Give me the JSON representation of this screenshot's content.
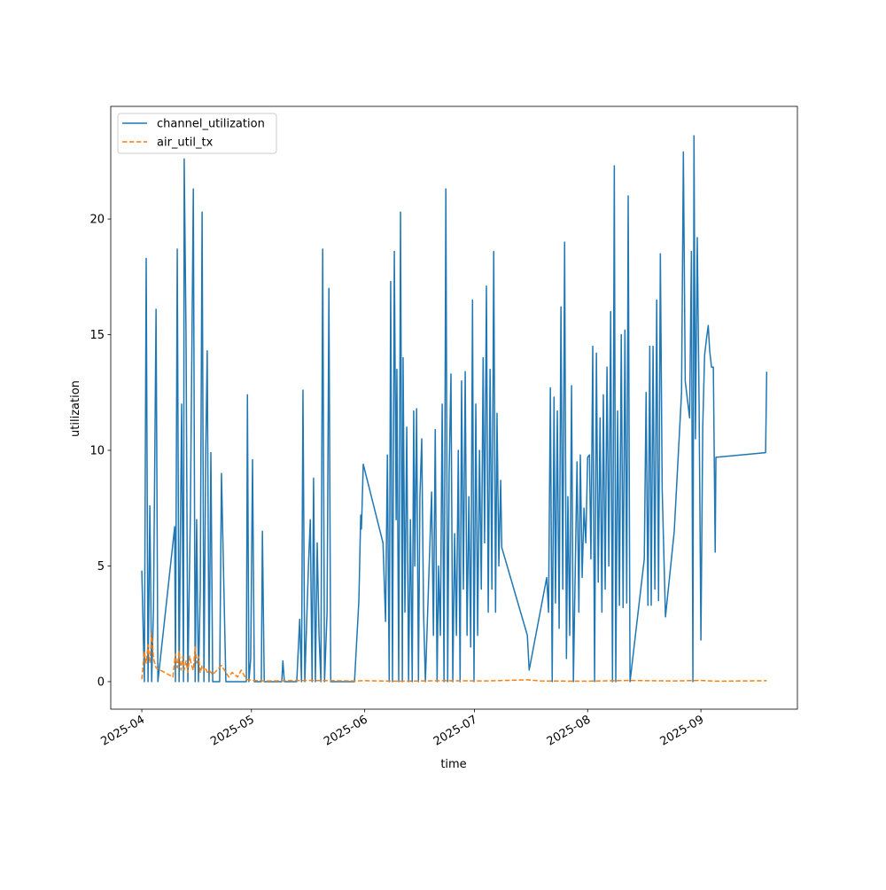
{
  "chart_data": {
    "type": "line",
    "x_label": "time",
    "y_label": "utilization",
    "xlim": [
      -8.5,
      179.4
    ],
    "xticks": [
      {
        "value": 0,
        "label": "2025-04"
      },
      {
        "value": 30,
        "label": "2025-05"
      },
      {
        "value": 61,
        "label": "2025-06"
      },
      {
        "value": 91,
        "label": "2025-07"
      },
      {
        "value": 122,
        "label": "2025-08"
      },
      {
        "value": 153,
        "label": "2025-09"
      }
    ],
    "ylim": [
      -1.19,
      24.87
    ],
    "yticks": [
      0,
      5,
      10,
      15,
      20
    ],
    "grid": false,
    "legend": "upper-left",
    "series": [
      {
        "name": "channel_utilization",
        "color": "#1f77b4",
        "dash": "solid",
        "x": [
          0,
          0.7,
          1.2,
          1.7,
          2.2,
          2.7,
          3.2,
          3.9,
          4.4,
          9.0,
          9.2,
          9.7,
          10.2,
          10.7,
          10.9,
          11.4,
          11.6,
          12.1,
          12.6,
          13.3,
          14.1,
          14.6,
          15.0,
          15.5,
          16.0,
          16.5,
          17.0,
          17.5,
          17.9,
          18.4,
          18.9,
          19.4,
          21.3,
          21.8,
          23.0,
          28.6,
          28.9,
          29.3,
          29.8,
          30.3,
          30.8,
          32.7,
          33.0,
          33.5,
          38.3,
          38.6,
          39.0,
          42.4,
          43.2,
          43.7,
          44.1,
          44.6,
          45.6,
          46.1,
          46.6,
          47.0,
          47.5,
          48.0,
          48.5,
          49.0,
          49.5,
          50.0,
          50.7,
          51.2,
          51.7,
          58.2,
          59.4,
          59.9,
          60.1,
          60.6,
          66.0,
          66.7,
          67.2,
          67.7,
          68.1,
          68.6,
          69.1,
          69.6,
          69.8,
          70.3,
          70.8,
          71.3,
          71.5,
          72.0,
          72.5,
          73.0,
          73.5,
          74.0,
          74.4,
          74.7,
          75.2,
          75.7,
          76.1,
          76.6,
          77.1,
          77.6,
          79.3,
          79.8,
          80.3,
          80.8,
          81.2,
          81.7,
          82.2,
          82.7,
          83.2,
          83.7,
          84.1,
          84.6,
          85.1,
          85.6,
          86.1,
          86.6,
          87.1,
          87.5,
          88.0,
          88.5,
          89.0,
          89.5,
          90.0,
          90.5,
          90.9,
          91.4,
          91.9,
          92.4,
          92.9,
          93.4,
          93.8,
          94.3,
          94.8,
          95.3,
          95.8,
          96.3,
          96.8,
          97.2,
          97.7,
          98.2,
          98.5,
          105.5,
          106.0,
          110.8,
          111.3,
          111.8,
          112.3,
          112.8,
          113.2,
          113.7,
          114.2,
          114.7,
          115.2,
          115.7,
          116.2,
          116.6,
          117.1,
          117.6,
          118.1,
          119.1,
          119.6,
          120.0,
          120.5,
          121.0,
          121.5,
          122.0,
          122.5,
          122.9,
          123.4,
          123.9,
          124.4,
          124.9,
          125.4,
          125.9,
          126.3,
          126.8,
          127.3,
          127.8,
          128.3,
          128.8,
          129.3,
          129.7,
          130.2,
          130.7,
          131.2,
          131.7,
          132.2,
          132.7,
          133.1,
          133.6,
          137.5,
          138.0,
          138.5,
          139.0,
          139.4,
          139.9,
          140.4,
          140.9,
          141.4,
          141.9,
          142.4,
          143.3,
          145.7,
          147.7,
          148.2,
          148.7,
          149.9,
          150.4,
          150.8,
          151.1,
          151.5,
          152.0,
          152.5,
          153.0,
          153.5,
          154.0,
          154.5,
          155.0,
          155.4,
          155.9,
          156.4,
          156.9,
          157.1,
          170.7,
          171.0
        ],
        "values": [
          4.8,
          0,
          18.3,
          0,
          7.6,
          0,
          3.2,
          16.1,
          0,
          6.7,
          0,
          18.7,
          0,
          8.8,
          12,
          0,
          22.6,
          15,
          0,
          7.4,
          21.3,
          0,
          7.0,
          0,
          4,
          20.3,
          0,
          10,
          14.3,
          0,
          9.9,
          0,
          0,
          9,
          0,
          0,
          12.4,
          0,
          1,
          9.6,
          0,
          0,
          6.5,
          0,
          0,
          0.9,
          0,
          0,
          2.7,
          0,
          12.6,
          0,
          5,
          7,
          0,
          8.8,
          0,
          6,
          2,
          0,
          18.7,
          0,
          3,
          17,
          0,
          0,
          3.5,
          7.2,
          6.6,
          9.4,
          6,
          2.6,
          9.8,
          0,
          17.3,
          0,
          18.6,
          7,
          13.5,
          0,
          20.3,
          0,
          14,
          3,
          11,
          0,
          7,
          0,
          11.7,
          5,
          11.8,
          0,
          8,
          10.5,
          3,
          0,
          8.2,
          2,
          10.9,
          0,
          5,
          2,
          12,
          0,
          21.3,
          0,
          9,
          13.3,
          0,
          6.4,
          2,
          10,
          0,
          13,
          4,
          13.4,
          2,
          8,
          1.5,
          16.5,
          0,
          12,
          2,
          10,
          4,
          14,
          6,
          17.1,
          3,
          13.5,
          4,
          18.6,
          3,
          11.6,
          5,
          8.7,
          5.8,
          2,
          0.5,
          4.5,
          3,
          12.7,
          0,
          12.3,
          3.4,
          11.7,
          2.3,
          16.2,
          4,
          19,
          1,
          8,
          2,
          12.8,
          0,
          9.5,
          3,
          9.8,
          4.5,
          7.5,
          6,
          9.7,
          9.8,
          5.3,
          14.5,
          0,
          14.2,
          4.3,
          11.4,
          3,
          12.4,
          4,
          13.6,
          5,
          16,
          0,
          22.3,
          0,
          11.7,
          3.3,
          15,
          3.2,
          15.2,
          3.4,
          21,
          0,
          5.3,
          12.5,
          3.3,
          14.5,
          3.3,
          14.5,
          4,
          16.5,
          3.5,
          18.5,
          8.3,
          2.8,
          6.5,
          12.5,
          22.9,
          13,
          11.4,
          18.6,
          0,
          23.6,
          10.5,
          19.2,
          12,
          1.8,
          11,
          14.1,
          14.8,
          15.4,
          14.3,
          13.6,
          13.6,
          5.6,
          9.7,
          9.9,
          13.4
        ]
      },
      {
        "name": "air_util_tx",
        "color": "#ff7f0e",
        "dash": "dashed",
        "x": [
          0,
          0.7,
          1.2,
          1.7,
          2.2,
          2.7,
          3.2,
          3.9,
          8.5,
          9.2,
          9.7,
          10.2,
          10.7,
          11.2,
          11.6,
          12.1,
          12.6,
          13.1,
          13.6,
          14.1,
          14.6,
          15.0,
          15.5,
          16.0,
          16.5,
          17.0,
          17.5,
          17.9,
          18.4,
          19.4,
          21.8,
          23.8,
          24.7,
          26.2,
          27.2,
          28.6,
          30.3,
          34.0,
          46.1,
          58.2,
          60.6,
          70.3,
          82.5,
          94.6,
          105.5,
          109.1,
          121.3,
          133.4,
          145.5,
          152.8,
          157.1,
          171.0
        ],
        "values": [
          0.1,
          1.3,
          0.8,
          1.6,
          0.8,
          2.1,
          1.0,
          0.6,
          0.2,
          1.2,
          0.6,
          1.3,
          0.5,
          1.1,
          0.5,
          0.9,
          0.4,
          1.1,
          0.7,
          0.5,
          1.5,
          0.8,
          1.1,
          0.4,
          0.7,
          0.5,
          0.6,
          0.4,
          0.5,
          0.3,
          0.7,
          0.2,
          0.4,
          0.2,
          0.5,
          0.1,
          0.05,
          0.03,
          0.05,
          0.03,
          0.04,
          0.02,
          0.04,
          0.03,
          0.08,
          0.03,
          0.02,
          0.05,
          0.03,
          0.05,
          0.02,
          0.04
        ]
      }
    ]
  }
}
